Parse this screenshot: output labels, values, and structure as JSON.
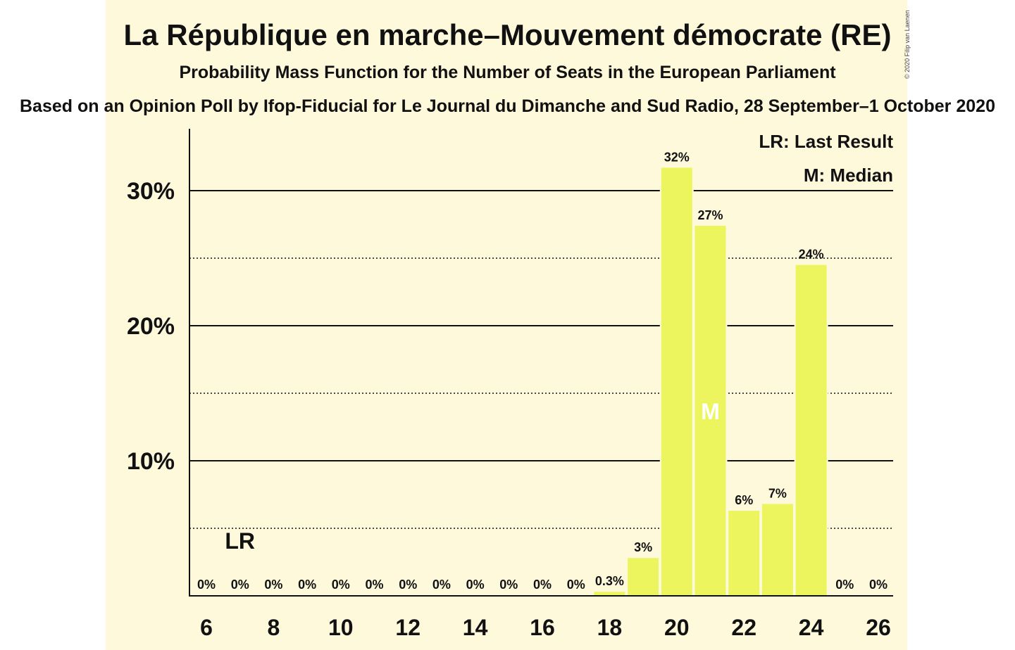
{
  "title": "La République en marche–Mouvement démocrate (RE)",
  "subtitle": "Probability Mass Function for the Number of Seats in the European Parliament",
  "source": "Based on an Opinion Poll by Ifop-Fiducial for Le Journal du Dimanche and Sud Radio, 28 September–1 October 2020",
  "copyright": "© 2020 Filip van Laenen",
  "legend": {
    "last_result": "LR: Last Result",
    "median": "M: Median"
  },
  "colors": {
    "bar": "#ecf55e",
    "background": "#fff9dc"
  },
  "chart_data": {
    "type": "bar",
    "x": [
      6,
      7,
      8,
      9,
      10,
      11,
      12,
      13,
      14,
      15,
      16,
      17,
      18,
      19,
      20,
      21,
      22,
      23,
      24,
      25,
      26
    ],
    "values": [
      0,
      0,
      0,
      0,
      0,
      0,
      0,
      0,
      0,
      0,
      0,
      0,
      0.3,
      2.8,
      31.7,
      27.4,
      6.3,
      6.8,
      24.5,
      0,
      0
    ],
    "data_labels": [
      "0%",
      "0%",
      "0%",
      "0%",
      "0%",
      "0%",
      "0%",
      "0%",
      "0%",
      "0%",
      "0%",
      "0%",
      "0.3%",
      "3%",
      "32%",
      "27%",
      "6%",
      "7%",
      "24%",
      "0%",
      "0%"
    ],
    "x_ticks": [
      "6",
      "8",
      "10",
      "12",
      "14",
      "16",
      "18",
      "20",
      "22",
      "24",
      "26"
    ],
    "y_ticks": [
      "10%",
      "20%",
      "30%"
    ],
    "ylim": [
      0,
      33
    ],
    "last_result": {
      "seat": 7,
      "label": "LR"
    },
    "median": {
      "seat": 21,
      "label": "M"
    },
    "grid": "solid major lines every 10%, dotted minor lines every 5%",
    "legend_position": "top-right"
  }
}
